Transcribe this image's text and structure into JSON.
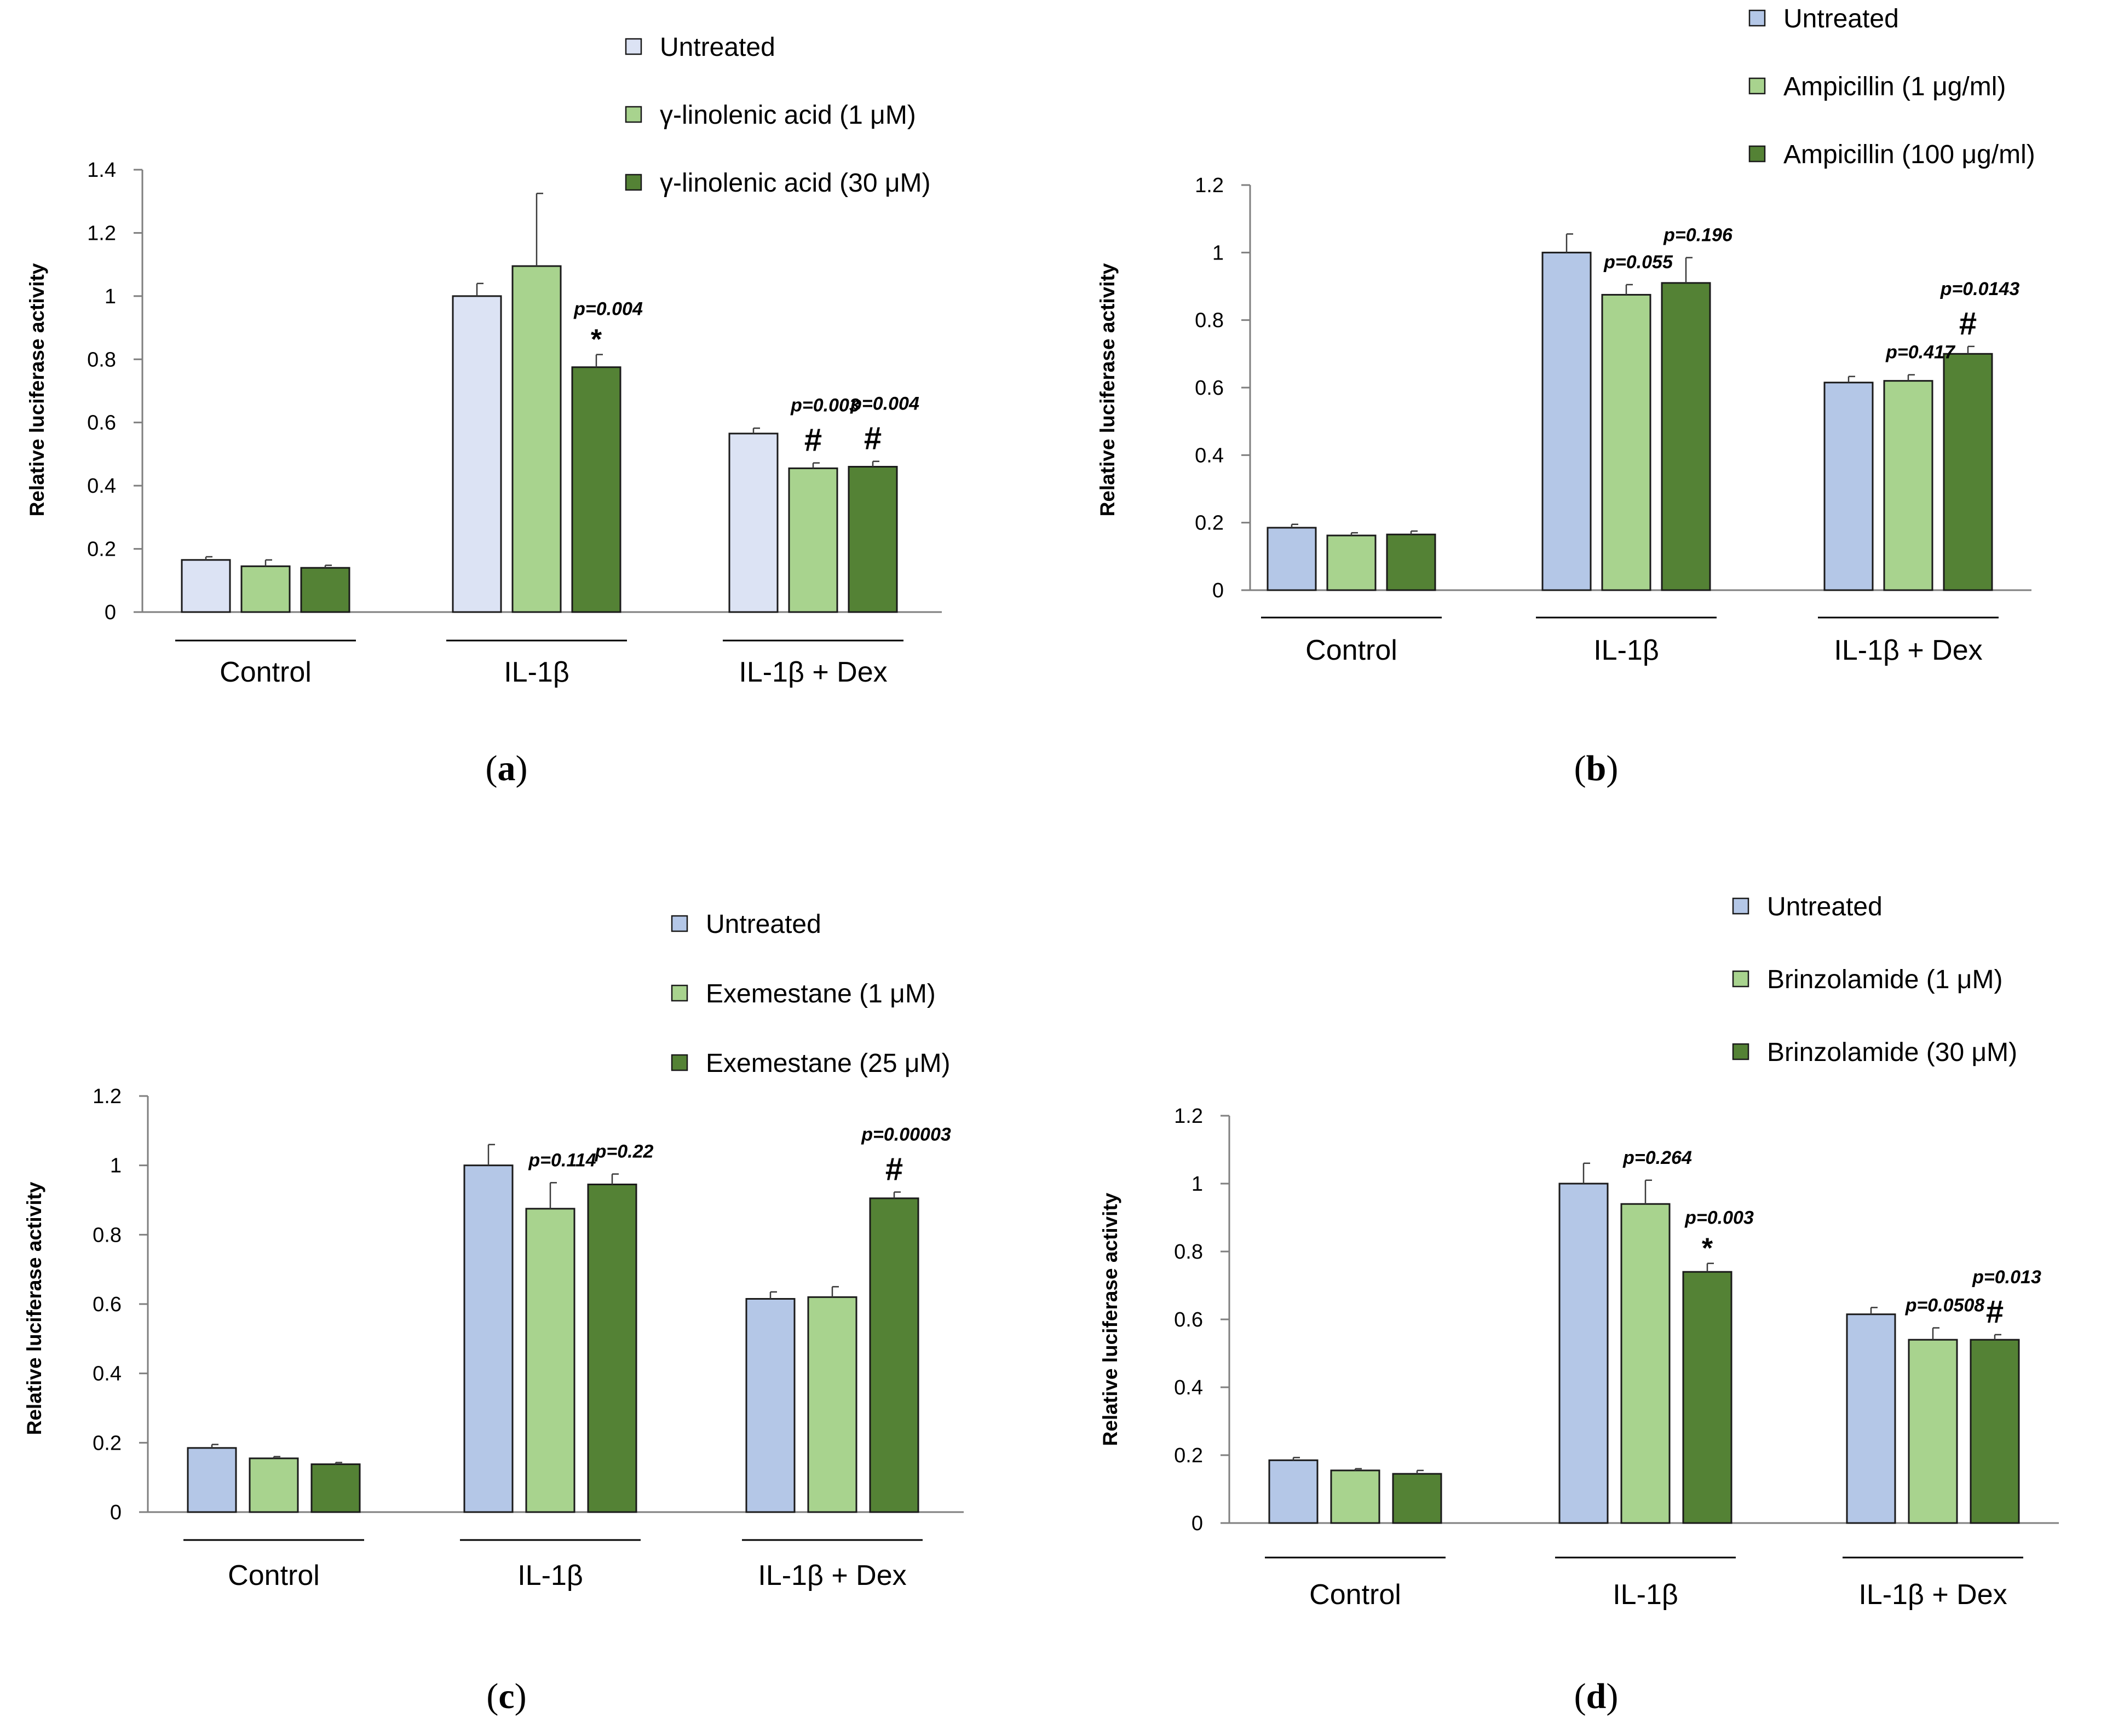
{
  "panels": [
    {
      "letter": "a",
      "chart_data": {
        "type": "bar",
        "title": "",
        "xlabel": "",
        "ylabel": "Relative luciferase activity",
        "ylim": [
          0,
          1.4
        ],
        "yticks": [
          "0",
          "0.2",
          "0.4",
          "0.6",
          "0.8",
          "1",
          "1.2",
          "1.4"
        ],
        "categories": [
          "Control",
          "IL-1β",
          "IL-1β + Dex"
        ],
        "legend_position": "top-right",
        "series": [
          {
            "name": "Untreated",
            "color": "#dce3f4",
            "values": [
              0.165,
              1.0,
              0.565
            ],
            "errors": [
              0.01,
              0.04,
              0.017
            ]
          },
          {
            "name": "γ-linolenic acid (1 μM)",
            "color": "#a8d38e",
            "values": [
              0.145,
              1.095,
              0.455
            ],
            "errors": [
              0.02,
              0.23,
              0.017
            ]
          },
          {
            "name": "γ-linolenic acid (30 μM)",
            "color": "#548235",
            "values": [
              0.14,
              0.775,
              0.46
            ],
            "errors": [
              0.008,
              0.04,
              0.017
            ]
          }
        ],
        "annotations": [
          {
            "category": 1,
            "series": 2,
            "p": "p=0.004",
            "mark": "*"
          },
          {
            "category": 2,
            "series": 1,
            "p": "p=0.003",
            "mark": "#"
          },
          {
            "category": 2,
            "series": 2,
            "p": "p=0.004",
            "mark": "#"
          }
        ]
      }
    },
    {
      "letter": "b",
      "chart_data": {
        "type": "bar",
        "title": "",
        "xlabel": "",
        "ylabel": "Relative luciferase activity",
        "ylim": [
          0,
          1.2
        ],
        "yticks": [
          "0",
          "0.2",
          "0.4",
          "0.6",
          "0.8",
          "1",
          "1.2"
        ],
        "categories": [
          "Control",
          "IL-1β",
          "IL-1β + Dex"
        ],
        "legend_position": "top-right",
        "series": [
          {
            "name": "Untreated",
            "color": "#b4c7e7",
            "values": [
              0.185,
              1.0,
              0.615
            ],
            "errors": [
              0.01,
              0.055,
              0.018
            ]
          },
          {
            "name": "Ampicillin (1 μg/ml)",
            "color": "#a8d38e",
            "values": [
              0.162,
              0.875,
              0.62
            ],
            "errors": [
              0.008,
              0.03,
              0.018
            ]
          },
          {
            "name": "Ampicillin (100 μg/ml)",
            "color": "#548235",
            "values": [
              0.165,
              0.91,
              0.7
            ],
            "errors": [
              0.01,
              0.075,
              0.022
            ]
          }
        ],
        "annotations": [
          {
            "category": 1,
            "series": 1,
            "p": "p=0.055",
            "mark": ""
          },
          {
            "category": 1,
            "series": 2,
            "p": "p=0.196",
            "mark": ""
          },
          {
            "category": 2,
            "series": 1,
            "p": "p=0.417",
            "mark": ""
          },
          {
            "category": 2,
            "series": 2,
            "p": "p=0.0143",
            "mark": "#"
          }
        ]
      }
    },
    {
      "letter": "c",
      "chart_data": {
        "type": "bar",
        "title": "",
        "xlabel": "",
        "ylabel": "Relative luciferase activity",
        "ylim": [
          0,
          1.2
        ],
        "yticks": [
          "0",
          "0.2",
          "0.4",
          "0.6",
          "0.8",
          "1",
          "1.2"
        ],
        "categories": [
          "Control",
          "IL-1β",
          "IL-1β + Dex"
        ],
        "legend_position": "top-right",
        "series": [
          {
            "name": "Untreated",
            "color": "#b4c7e7",
            "values": [
              0.185,
              1.0,
              0.615
            ],
            "errors": [
              0.01,
              0.06,
              0.02
            ]
          },
          {
            "name": "Exemestane (1 μM)",
            "color": "#a8d38e",
            "values": [
              0.155,
              0.875,
              0.62
            ],
            "errors": [
              0.005,
              0.075,
              0.03
            ]
          },
          {
            "name": "Exemestane (25 μM)",
            "color": "#548235",
            "values": [
              0.138,
              0.945,
              0.905
            ],
            "errors": [
              0.005,
              0.03,
              0.018
            ]
          }
        ],
        "annotations": [
          {
            "category": 1,
            "series": 1,
            "p": "p=0.114",
            "mark": ""
          },
          {
            "category": 1,
            "series": 2,
            "p": "p=0.22",
            "mark": ""
          },
          {
            "category": 2,
            "series": 2,
            "p": "p=0.00003",
            "mark": "#"
          }
        ]
      }
    },
    {
      "letter": "d",
      "chart_data": {
        "type": "bar",
        "title": "",
        "xlabel": "",
        "ylabel": "Relative luciferase activity",
        "ylim": [
          0,
          1.2
        ],
        "yticks": [
          "0",
          "0.2",
          "0.4",
          "0.6",
          "0.8",
          "1",
          "1.2"
        ],
        "categories": [
          "Control",
          "IL-1β",
          "IL-1β + Dex"
        ],
        "legend_position": "top-right",
        "series": [
          {
            "name": "Untreated",
            "color": "#b4c7e7",
            "values": [
              0.185,
              1.0,
              0.615
            ],
            "errors": [
              0.008,
              0.06,
              0.02
            ]
          },
          {
            "name": "Brinzolamide (1 μM)",
            "color": "#a8d38e",
            "values": [
              0.155,
              0.94,
              0.54
            ],
            "errors": [
              0.005,
              0.07,
              0.035
            ]
          },
          {
            "name": "Brinzolamide (30 μM)",
            "color": "#548235",
            "values": [
              0.145,
              0.74,
              0.54
            ],
            "errors": [
              0.01,
              0.025,
              0.015
            ]
          }
        ],
        "annotations": [
          {
            "category": 1,
            "series": 1,
            "p": "p=0.264",
            "mark": ""
          },
          {
            "category": 1,
            "series": 2,
            "p": "p=0.003",
            "mark": "*"
          },
          {
            "category": 2,
            "series": 1,
            "p": "p=0.0508",
            "mark": ""
          },
          {
            "category": 2,
            "series": 2,
            "p": "p=0.013",
            "mark": "#"
          }
        ]
      }
    }
  ]
}
